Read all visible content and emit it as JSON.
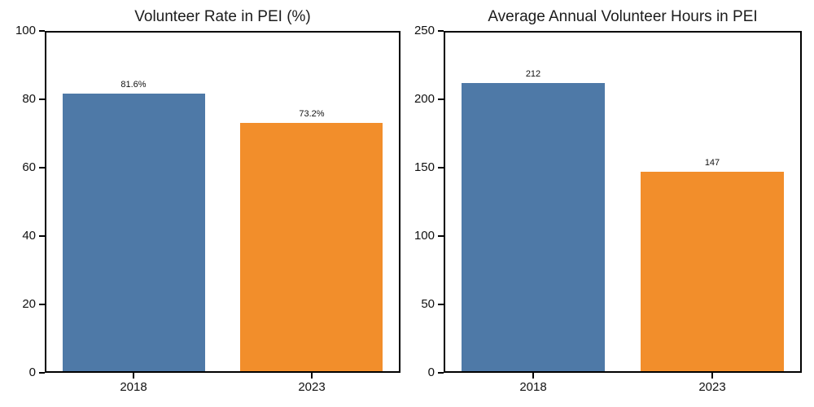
{
  "figure": {
    "background": "#ffffff",
    "text_color": "#111111"
  },
  "chart_data": [
    {
      "type": "bar",
      "title": "Volunteer Rate in PEI (%)",
      "categories": [
        "2018",
        "2023"
      ],
      "values": [
        81.6,
        73.2
      ],
      "value_labels": [
        "81.6%",
        "73.2%"
      ],
      "bar_colors": [
        "#4E79A7",
        "#F28E2B"
      ],
      "xlabel": "",
      "ylabel": "",
      "ylim": [
        0,
        100
      ],
      "yticks": [
        0,
        20,
        40,
        60,
        80,
        100
      ],
      "grid": false,
      "legend": null
    },
    {
      "type": "bar",
      "title": "Average Annual Volunteer Hours in PEI",
      "categories": [
        "2018",
        "2023"
      ],
      "values": [
        212,
        147
      ],
      "value_labels": [
        "212",
        "147"
      ],
      "bar_colors": [
        "#4E79A7",
        "#F28E2B"
      ],
      "xlabel": "",
      "ylabel": "",
      "ylim": [
        0,
        250
      ],
      "yticks": [
        0,
        50,
        100,
        150,
        200,
        250
      ],
      "grid": false,
      "legend": null
    }
  ]
}
